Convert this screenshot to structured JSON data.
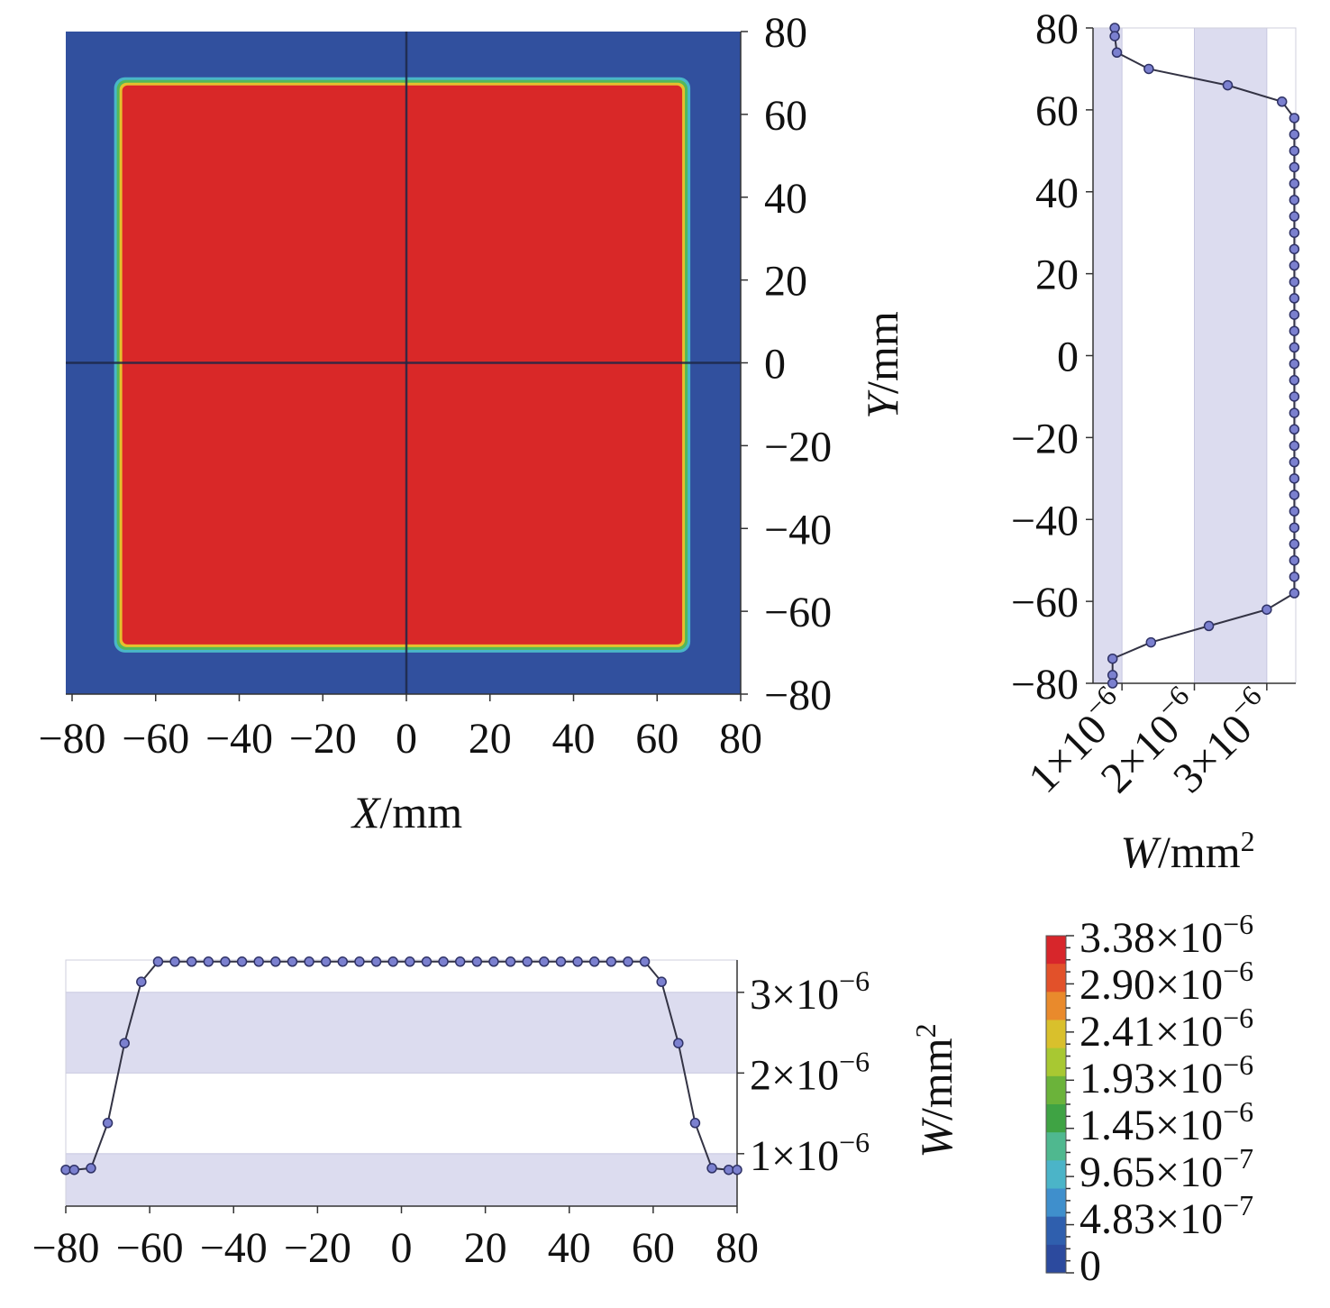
{
  "chart_data": [
    {
      "type": "heatmap",
      "xlabel_var": "X",
      "xlabel_unit": "/mm",
      "ylabel_var": "Y",
      "ylabel_unit": "/mm",
      "xlim": [
        -80,
        80
      ],
      "ylim": [
        -80,
        80
      ],
      "x_ticks": [
        "−80",
        "−60",
        "−40",
        "−20",
        "0",
        "20",
        "40",
        "60",
        "80"
      ],
      "y_ticks": [
        "80",
        "60",
        "40",
        "20",
        "0",
        "−20",
        "−40",
        "−60",
        "−80"
      ],
      "x_tick_values": [
        -80,
        -60,
        -40,
        -20,
        0,
        20,
        40,
        60,
        80
      ],
      "y_tick_values": [
        80,
        60,
        40,
        20,
        0,
        -20,
        -40,
        -60,
        -80
      ],
      "high_region": {
        "x_range": [
          -68,
          66
        ],
        "y_range": [
          -68,
          67
        ],
        "value": 3.38e-06
      },
      "background_value": 0,
      "crosshair": {
        "x": 0,
        "y": 0
      },
      "colors": {
        "high": "#d92828",
        "low": "#31509e"
      }
    },
    {
      "type": "line",
      "orientation": "vertical",
      "xlabel_var": "W",
      "xlabel_unit": "/mm",
      "xlabel_sup": "2",
      "ylim": [
        -80,
        80
      ],
      "xlim": [
        6e-07,
        3.4e-06
      ],
      "y_ticks": [
        "80",
        "60",
        "40",
        "20",
        "0",
        "−20",
        "−40",
        "−60",
        "−80"
      ],
      "y_tick_values": [
        80,
        60,
        40,
        20,
        0,
        -20,
        -40,
        -60,
        -80
      ],
      "x_ticks": [
        {
          "mant": "1×10",
          "exp": "−6",
          "value": 1e-06
        },
        {
          "mant": "2×10",
          "exp": "−6",
          "value": 2e-06
        },
        {
          "mant": "3×10",
          "exp": "−6",
          "value": 3e-06
        }
      ],
      "bands": [
        [
          6e-07,
          1e-06
        ],
        [
          2e-06,
          3e-06
        ]
      ],
      "points": [
        {
          "y": 80,
          "w": 9e-07
        },
        {
          "y": 78,
          "w": 9e-07
        },
        {
          "y": 74,
          "w": 9.3e-07
        },
        {
          "y": 70,
          "w": 1.37e-06
        },
        {
          "y": 66,
          "w": 2.46e-06
        },
        {
          "y": 62,
          "w": 3.21e-06
        },
        {
          "y": 58,
          "w": 3.38e-06
        },
        {
          "y": 54,
          "w": 3.38e-06
        },
        {
          "y": 50,
          "w": 3.38e-06
        },
        {
          "y": 46,
          "w": 3.38e-06
        },
        {
          "y": 42,
          "w": 3.38e-06
        },
        {
          "y": 38,
          "w": 3.38e-06
        },
        {
          "y": 34,
          "w": 3.38e-06
        },
        {
          "y": 30,
          "w": 3.38e-06
        },
        {
          "y": 26,
          "w": 3.38e-06
        },
        {
          "y": 22,
          "w": 3.38e-06
        },
        {
          "y": 18,
          "w": 3.38e-06
        },
        {
          "y": 14,
          "w": 3.38e-06
        },
        {
          "y": 10,
          "w": 3.38e-06
        },
        {
          "y": 6,
          "w": 3.38e-06
        },
        {
          "y": 2,
          "w": 3.38e-06
        },
        {
          "y": -2,
          "w": 3.38e-06
        },
        {
          "y": -6,
          "w": 3.38e-06
        },
        {
          "y": -10,
          "w": 3.38e-06
        },
        {
          "y": -14,
          "w": 3.38e-06
        },
        {
          "y": -18,
          "w": 3.38e-06
        },
        {
          "y": -22,
          "w": 3.38e-06
        },
        {
          "y": -26,
          "w": 3.38e-06
        },
        {
          "y": -30,
          "w": 3.38e-06
        },
        {
          "y": -34,
          "w": 3.38e-06
        },
        {
          "y": -38,
          "w": 3.38e-06
        },
        {
          "y": -42,
          "w": 3.38e-06
        },
        {
          "y": -46,
          "w": 3.38e-06
        },
        {
          "y": -50,
          "w": 3.38e-06
        },
        {
          "y": -54,
          "w": 3.38e-06
        },
        {
          "y": -58,
          "w": 3.38e-06
        },
        {
          "y": -62,
          "w": 3e-06
        },
        {
          "y": -66,
          "w": 2.2e-06
        },
        {
          "y": -70,
          "w": 1.4e-06
        },
        {
          "y": -74,
          "w": 8.7e-07
        },
        {
          "y": -78,
          "w": 8.7e-07
        },
        {
          "y": -80,
          "w": 8.7e-07
        }
      ]
    },
    {
      "type": "line",
      "orientation": "horizontal",
      "ylabel_var": "W",
      "ylabel_unit": "/mm",
      "ylabel_sup": "2",
      "xlim": [
        -80,
        80
      ],
      "ylim": [
        3.5e-07,
        3.4e-06
      ],
      "x_ticks": [
        "−80",
        "−60",
        "−40",
        "−20",
        "0",
        "20",
        "40",
        "60",
        "80"
      ],
      "x_tick_values": [
        -80,
        -60,
        -40,
        -20,
        0,
        20,
        40,
        60,
        80
      ],
      "y_ticks": [
        {
          "mant": "3×10",
          "exp": "−6",
          "value": 3e-06
        },
        {
          "mant": "2×10",
          "exp": "−6",
          "value": 2e-06
        },
        {
          "mant": "1×10",
          "exp": "−6",
          "value": 1e-06
        }
      ],
      "bands": [
        [
          3.5e-07,
          1e-06
        ],
        [
          2e-06,
          3e-06
        ]
      ],
      "points": [
        {
          "x": -80,
          "w": 8e-07
        },
        {
          "x": -78,
          "w": 8e-07
        },
        {
          "x": -74,
          "w": 8.2e-07
        },
        {
          "x": -70,
          "w": 1.38e-06
        },
        {
          "x": -66,
          "w": 2.37e-06
        },
        {
          "x": -62,
          "w": 3.13e-06
        },
        {
          "x": -58,
          "w": 3.38e-06
        },
        {
          "x": -54,
          "w": 3.38e-06
        },
        {
          "x": -50,
          "w": 3.38e-06
        },
        {
          "x": -46,
          "w": 3.38e-06
        },
        {
          "x": -42,
          "w": 3.38e-06
        },
        {
          "x": -38,
          "w": 3.38e-06
        },
        {
          "x": -34,
          "w": 3.38e-06
        },
        {
          "x": -30,
          "w": 3.38e-06
        },
        {
          "x": -26,
          "w": 3.38e-06
        },
        {
          "x": -22,
          "w": 3.38e-06
        },
        {
          "x": -18,
          "w": 3.38e-06
        },
        {
          "x": -14,
          "w": 3.38e-06
        },
        {
          "x": -10,
          "w": 3.38e-06
        },
        {
          "x": -6,
          "w": 3.38e-06
        },
        {
          "x": -2,
          "w": 3.38e-06
        },
        {
          "x": 2,
          "w": 3.38e-06
        },
        {
          "x": 6,
          "w": 3.38e-06
        },
        {
          "x": 10,
          "w": 3.38e-06
        },
        {
          "x": 14,
          "w": 3.38e-06
        },
        {
          "x": 18,
          "w": 3.38e-06
        },
        {
          "x": 22,
          "w": 3.38e-06
        },
        {
          "x": 26,
          "w": 3.38e-06
        },
        {
          "x": 30,
          "w": 3.38e-06
        },
        {
          "x": 34,
          "w": 3.38e-06
        },
        {
          "x": 38,
          "w": 3.38e-06
        },
        {
          "x": 42,
          "w": 3.38e-06
        },
        {
          "x": 46,
          "w": 3.38e-06
        },
        {
          "x": 50,
          "w": 3.38e-06
        },
        {
          "x": 54,
          "w": 3.38e-06
        },
        {
          "x": 58,
          "w": 3.38e-06
        },
        {
          "x": 62,
          "w": 3.13e-06
        },
        {
          "x": 66,
          "w": 2.37e-06
        },
        {
          "x": 70,
          "w": 1.38e-06
        },
        {
          "x": 74,
          "w": 8.2e-07
        },
        {
          "x": 78,
          "w": 8e-07
        },
        {
          "x": 80,
          "w": 8e-07
        }
      ]
    }
  ],
  "colorbar": {
    "labels": [
      {
        "mant": "3.38×10",
        "exp": "−6"
      },
      {
        "mant": "2.90×10",
        "exp": "−6"
      },
      {
        "mant": "2.41×10",
        "exp": "−6"
      },
      {
        "mant": "1.93×10",
        "exp": "−6"
      },
      {
        "mant": "1.45×10",
        "exp": "−6"
      },
      {
        "mant": "9.65×10",
        "exp": "−7"
      },
      {
        "mant": "4.83×10",
        "exp": "−7"
      },
      {
        "mant": "0",
        "exp": ""
      }
    ],
    "colors_top_to_bottom": [
      "#d7262b",
      "#e2512a",
      "#e98a2c",
      "#d9c02c",
      "#a8c832",
      "#6bb33a",
      "#3fa344",
      "#4fb88f",
      "#4bb4c8",
      "#3f8fcc",
      "#2f5fae",
      "#2c4a9e"
    ]
  },
  "colors": {
    "line": "#333344",
    "marker_fill": "#7b80cf",
    "marker_stroke": "#2f3266",
    "band": "#dcdcef"
  }
}
